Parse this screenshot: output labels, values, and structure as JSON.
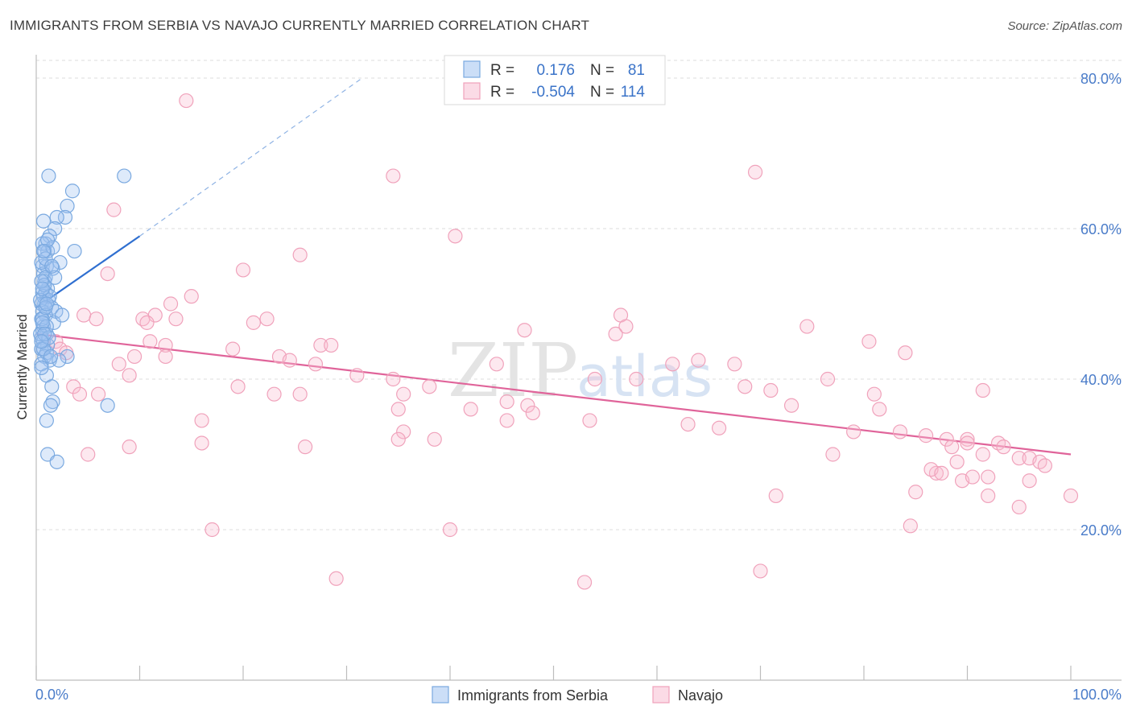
{
  "title": "IMMIGRANTS FROM SERBIA VS NAVAJO CURRENTLY MARRIED CORRELATION CHART",
  "source": "Source: ZipAtlas.com",
  "watermark": {
    "zip": "ZIP",
    "atlas": "atlas"
  },
  "chart_data": {
    "type": "scatter",
    "xlabel": "",
    "ylabel": "Currently Married",
    "xlim": [
      0,
      100
    ],
    "ylim": [
      0,
      80
    ],
    "x_tick_labels": [
      "0.0%",
      "100.0%"
    ],
    "y_ticks": [
      20,
      40,
      60,
      80
    ],
    "y_tick_labels": [
      "20.0%",
      "40.0%",
      "60.0%",
      "80.0%"
    ],
    "grid": true,
    "legend_position": "top-center",
    "series": [
      {
        "name": "Immigrants from Serbia",
        "color": "#7aa9e0",
        "fill": "rgba(160,195,240,0.35)",
        "line_color": "#2f6fd0",
        "R": "0.176",
        "N": "81",
        "trend": {
          "x0": 0,
          "y0": 49.5,
          "x1": 10,
          "y1": 59.0,
          "dashed_to_x": 31.5,
          "dashed_to_y": 80
        },
        "points": [
          [
            0.5,
            44
          ],
          [
            1.2,
            67
          ],
          [
            8.5,
            67
          ],
          [
            3.5,
            65
          ],
          [
            3.0,
            63
          ],
          [
            2.8,
            61.5
          ],
          [
            2.0,
            61.5
          ],
          [
            0.7,
            61
          ],
          [
            1.8,
            60
          ],
          [
            1.3,
            59
          ],
          [
            0.9,
            58
          ],
          [
            0.6,
            58
          ],
          [
            1.1,
            57
          ],
          [
            3.7,
            57
          ],
          [
            0.8,
            57
          ],
          [
            2.3,
            55.5
          ],
          [
            0.6,
            55
          ],
          [
            1.0,
            55
          ],
          [
            1.6,
            54.7
          ],
          [
            0.7,
            54
          ],
          [
            0.9,
            53.5
          ],
          [
            0.8,
            53
          ],
          [
            1.1,
            52
          ],
          [
            0.6,
            51.5
          ],
          [
            0.9,
            51.5
          ],
          [
            0.7,
            51
          ],
          [
            1.2,
            50.5
          ],
          [
            0.5,
            50
          ],
          [
            0.8,
            50
          ],
          [
            1.5,
            49.5
          ],
          [
            1.9,
            49
          ],
          [
            0.6,
            49
          ],
          [
            0.9,
            48.5
          ],
          [
            0.5,
            48
          ],
          [
            1.7,
            47.5
          ],
          [
            0.7,
            47
          ],
          [
            0.6,
            46.5
          ],
          [
            1.0,
            46
          ],
          [
            0.5,
            45.5
          ],
          [
            0.7,
            45
          ],
          [
            1.1,
            44.5
          ],
          [
            0.5,
            44
          ],
          [
            1.0,
            43.5
          ],
          [
            3.0,
            43
          ],
          [
            0.8,
            43
          ],
          [
            1.3,
            42.5
          ],
          [
            0.5,
            42
          ],
          [
            1.0,
            40.5
          ],
          [
            1.5,
            39
          ],
          [
            1.6,
            37
          ],
          [
            1.4,
            36.5
          ],
          [
            6.9,
            36.5
          ],
          [
            1.0,
            34.5
          ],
          [
            1.1,
            30
          ],
          [
            2.0,
            29
          ],
          [
            0.5,
            55.5
          ],
          [
            0.8,
            52.5
          ],
          [
            1.3,
            51
          ],
          [
            0.6,
            48
          ],
          [
            1.0,
            47
          ],
          [
            2.2,
            42.5
          ],
          [
            0.4,
            46
          ],
          [
            0.9,
            56
          ],
          [
            1.6,
            57.5
          ],
          [
            0.4,
            50.5
          ],
          [
            2.5,
            48.5
          ],
          [
            0.7,
            44
          ],
          [
            1.2,
            45.5
          ],
          [
            0.5,
            53
          ],
          [
            1.8,
            53.5
          ],
          [
            0.6,
            47.5
          ],
          [
            0.9,
            49.5
          ],
          [
            1.1,
            58.5
          ],
          [
            0.5,
            41.5
          ],
          [
            1.4,
            43
          ],
          [
            0.8,
            46
          ],
          [
            0.6,
            52
          ],
          [
            1.0,
            50
          ],
          [
            0.7,
            57
          ],
          [
            1.5,
            55
          ],
          [
            0.5,
            45
          ]
        ]
      },
      {
        "name": "Navajo",
        "color": "#f0a2bb",
        "fill": "rgba(248,190,210,0.35)",
        "line_color": "#e0649a",
        "R": "-0.504",
        "N": "114",
        "trend": {
          "x0": 0,
          "y0": 46.0,
          "x1": 100,
          "y1": 30.0
        },
        "points": [
          [
            14.5,
            77
          ],
          [
            34.5,
            67
          ],
          [
            69.5,
            67.5
          ],
          [
            7.5,
            62.5
          ],
          [
            40.5,
            59
          ],
          [
            25.5,
            56.5
          ],
          [
            20,
            54.5
          ],
          [
            6.9,
            54
          ],
          [
            15,
            51
          ],
          [
            13,
            50
          ],
          [
            11.5,
            48.5
          ],
          [
            4.6,
            48.5
          ],
          [
            5.8,
            48
          ],
          [
            10.3,
            48
          ],
          [
            10.7,
            47.5
          ],
          [
            21,
            47.5
          ],
          [
            22.3,
            48
          ],
          [
            56.5,
            48.5
          ],
          [
            57,
            47
          ],
          [
            74.5,
            47
          ],
          [
            56,
            46
          ],
          [
            47.2,
            46.5
          ],
          [
            1.9,
            45
          ],
          [
            11,
            45
          ],
          [
            12.5,
            44.5
          ],
          [
            19,
            44
          ],
          [
            27.5,
            44.5
          ],
          [
            28.5,
            44.5
          ],
          [
            2.3,
            44
          ],
          [
            2.9,
            43.5
          ],
          [
            9.5,
            43
          ],
          [
            12.5,
            43
          ],
          [
            23.5,
            43
          ],
          [
            24.5,
            42.5
          ],
          [
            27,
            42
          ],
          [
            44.5,
            42
          ],
          [
            61.5,
            42
          ],
          [
            64,
            42.5
          ],
          [
            80.5,
            45
          ],
          [
            84,
            43.5
          ],
          [
            8,
            42
          ],
          [
            9,
            40.5
          ],
          [
            31,
            40.5
          ],
          [
            54,
            40
          ],
          [
            58,
            40
          ],
          [
            67.5,
            42
          ],
          [
            76.5,
            40
          ],
          [
            3.6,
            39
          ],
          [
            4.2,
            38
          ],
          [
            6,
            38
          ],
          [
            19.5,
            39
          ],
          [
            34.5,
            40
          ],
          [
            38,
            39
          ],
          [
            68.5,
            39
          ],
          [
            71,
            38.5
          ],
          [
            91.5,
            38.5
          ],
          [
            23,
            38
          ],
          [
            25.5,
            38
          ],
          [
            35.5,
            38
          ],
          [
            45.5,
            37
          ],
          [
            47.5,
            36.5
          ],
          [
            73,
            36.5
          ],
          [
            81.5,
            36
          ],
          [
            35,
            36
          ],
          [
            48,
            35.5
          ],
          [
            16,
            34.5
          ],
          [
            45.5,
            34.5
          ],
          [
            53.5,
            34.5
          ],
          [
            66,
            33.5
          ],
          [
            79,
            33
          ],
          [
            83.5,
            33
          ],
          [
            86,
            32.5
          ],
          [
            35.5,
            33
          ],
          [
            88,
            32
          ],
          [
            90,
            32
          ],
          [
            16,
            31.5
          ],
          [
            26,
            31
          ],
          [
            9,
            31
          ],
          [
            35,
            32
          ],
          [
            38.5,
            32
          ],
          [
            77,
            30
          ],
          [
            88.5,
            31
          ],
          [
            90,
            31.5
          ],
          [
            91.5,
            30
          ],
          [
            93,
            31.5
          ],
          [
            95,
            29.5
          ],
          [
            96,
            29.5
          ],
          [
            97,
            29
          ],
          [
            93.5,
            31
          ],
          [
            97.5,
            28.5
          ],
          [
            87,
            27.5
          ],
          [
            89,
            29
          ],
          [
            92,
            27
          ],
          [
            96,
            26.5
          ],
          [
            86.5,
            28
          ],
          [
            87.5,
            27.5
          ],
          [
            89.5,
            26.5
          ],
          [
            90.5,
            27
          ],
          [
            85,
            25
          ],
          [
            92,
            24.5
          ],
          [
            100,
            24.5
          ],
          [
            95,
            23
          ],
          [
            71.5,
            24.5
          ],
          [
            17,
            20
          ],
          [
            40,
            20
          ],
          [
            84.5,
            20.5
          ],
          [
            29,
            13.5
          ],
          [
            53,
            13
          ],
          [
            70,
            14.5
          ],
          [
            13.5,
            48
          ],
          [
            5,
            30
          ],
          [
            81,
            38
          ],
          [
            63,
            34
          ],
          [
            42,
            36
          ]
        ]
      }
    ]
  }
}
